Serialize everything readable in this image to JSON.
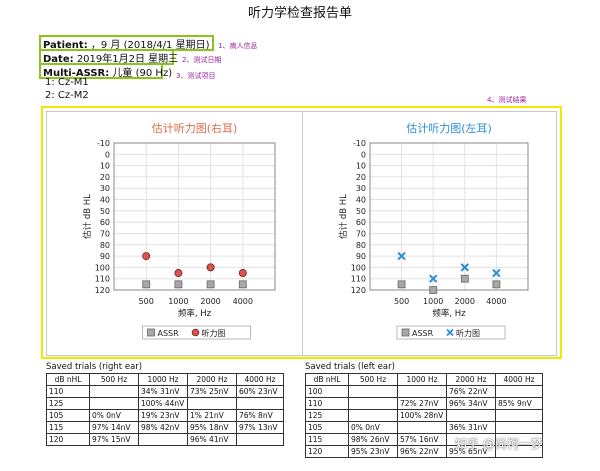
{
  "title": "听力学检查报告单",
  "patient": {
    "label": "Patient:",
    "value": "，9 月 (2018/4/1 星期日)"
  },
  "date": {
    "label": "Date:",
    "value": "2019年1月2日 星期三"
  },
  "test": {
    "label": "Multi-ASSR:",
    "value": "儿童 (90 Hz)"
  },
  "channels": [
    "1: Cz-M1",
    "2: Cz-M2"
  ],
  "notes": {
    "n1": "1、病人信息",
    "n2": "2、测试日期",
    "n3": "3、测试项目",
    "n4": "4、测试结果"
  },
  "colors": {
    "green_box": "#8cc21e",
    "yellow_box": "#f0e800",
    "right_ear": "#d9534f",
    "left_ear": "#2a8fd6",
    "assr": "#9a9a9a"
  },
  "chart_data": [
    {
      "type": "scatter",
      "title": "估计听力图(右耳)",
      "xlabel": "频率, Hz",
      "ylabel": "估计 dB HL",
      "x_ticks": [
        500,
        1000,
        2000,
        4000
      ],
      "y_ticks": [
        -10,
        0,
        10,
        20,
        30,
        40,
        50,
        60,
        70,
        80,
        90,
        100,
        110,
        120
      ],
      "ylim": [
        -10,
        120
      ],
      "y_inverted": true,
      "legend": [
        "ASSR",
        "听力图"
      ],
      "legend_placement": "bottom",
      "series": [
        {
          "name": "ASSR",
          "marker": "square",
          "points": [
            [
              500,
              115
            ],
            [
              1000,
              115
            ],
            [
              2000,
              115
            ],
            [
              4000,
              115
            ]
          ]
        },
        {
          "name": "听力图",
          "marker": "circle",
          "points": [
            [
              500,
              90
            ],
            [
              1000,
              105
            ],
            [
              2000,
              100
            ],
            [
              4000,
              105
            ]
          ]
        }
      ]
    },
    {
      "type": "scatter",
      "title": "估计听力图(左耳)",
      "xlabel": "频率, Hz",
      "ylabel": "估计 dB HL",
      "x_ticks": [
        500,
        1000,
        2000,
        4000
      ],
      "y_ticks": [
        -10,
        0,
        10,
        20,
        30,
        40,
        50,
        60,
        70,
        80,
        90,
        100,
        110,
        120
      ],
      "ylim": [
        -10,
        120
      ],
      "y_inverted": true,
      "legend": [
        "ASSR",
        "听力图"
      ],
      "legend_placement": "bottom",
      "series": [
        {
          "name": "ASSR",
          "marker": "square",
          "points": [
            [
              500,
              115
            ],
            [
              1000,
              120
            ],
            [
              2000,
              110
            ],
            [
              4000,
              115
            ]
          ]
        },
        {
          "name": "听力图",
          "marker": "x",
          "points": [
            [
              500,
              90
            ],
            [
              1000,
              110
            ],
            [
              2000,
              100
            ],
            [
              4000,
              105
            ]
          ]
        }
      ]
    }
  ],
  "tables": {
    "right": {
      "title": "Saved trials (right ear)",
      "headers": [
        "dB nHL",
        "500 Hz",
        "1000 Hz",
        "2000 Hz",
        "4000 Hz"
      ],
      "rows": [
        [
          "110",
          "",
          "34% 31nV",
          "73% 25nV",
          "60% 23nV"
        ],
        [
          "125",
          "",
          "100% 44nV",
          "",
          ""
        ],
        [
          "105",
          "0% 0nV",
          "19% 23nV",
          "1% 21nV",
          "76% 8nV"
        ],
        [
          "115",
          "97% 14nV",
          "98% 42nV",
          "95% 18nV",
          "97% 13nV"
        ],
        [
          "120",
          "97% 15nV",
          "",
          "96% 41nV",
          ""
        ]
      ]
    },
    "left": {
      "title": "Saved trials (left ear)",
      "headers": [
        "dB nHL",
        "500 Hz",
        "1000 Hz",
        "2000 Hz",
        "4000 Hz"
      ],
      "rows": [
        [
          "100",
          "",
          "",
          "76% 22nV",
          ""
        ],
        [
          "110",
          "",
          "72% 27nV",
          "96% 34nV",
          "85% 9nV"
        ],
        [
          "125",
          "",
          "100% 28nV",
          "",
          ""
        ],
        [
          "105",
          "0% 0nV",
          "",
          "36% 31nV",
          ""
        ],
        [
          "115",
          "98% 26nV",
          "57% 16nV",
          "",
          ""
        ],
        [
          "120",
          "95% 23nV",
          "96% 22nV",
          "95% 65nV",
          ""
        ]
      ]
    }
  },
  "watermark": "知乎 @尚柯一梦"
}
